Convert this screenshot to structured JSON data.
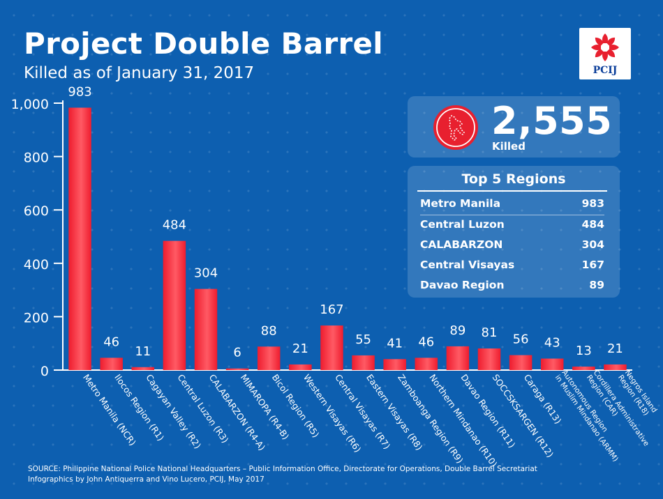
{
  "header": {
    "title": "Project Double Barrel",
    "subtitle": "Killed as of January 31, 2017"
  },
  "logo": {
    "text": "PCIJ",
    "icon": "pcij-sunburst-logo"
  },
  "summary": {
    "total": "2,555",
    "label": "Killed",
    "icon": "fallen-figure-icon"
  },
  "top_regions": {
    "heading": "Top 5 Regions",
    "items": [
      {
        "name": "Metro Manila",
        "value": "983"
      },
      {
        "name": "Central Luzon",
        "value": "484"
      },
      {
        "name": "CALABARZON",
        "value": "304"
      },
      {
        "name": "Central Visayas",
        "value": "167"
      },
      {
        "name": "Davao Region",
        "value": "89"
      }
    ]
  },
  "source": {
    "line1": "SOURCE: Philippine National Police National Headquarters – Public Information Office, Directorate for Operations, Double Barrel Secretariat",
    "line2": "Infographics by John Antiquerra and Vino Lucero, PCIJ, May 2017"
  },
  "colors": {
    "background": "#0d5fb0",
    "bar": "#ee1c2e",
    "bar_highlight": "#ff5a64",
    "text": "#ffffff"
  },
  "chart_data": {
    "type": "bar",
    "title": "Project Double Barrel",
    "subtitle": "Killed as of January 31, 2017",
    "xlabel": "",
    "ylabel": "",
    "ylim": [
      0,
      1000
    ],
    "yticks": [
      0,
      200,
      400,
      600,
      800,
      1000
    ],
    "ytick_labels": [
      "0",
      "200",
      "400",
      "600",
      "800",
      "1,000"
    ],
    "grid": false,
    "categories": [
      [
        "Metro Manila (NCR)"
      ],
      [
        "Ilocos Region (R1)"
      ],
      [
        "Cagayan Valley (R2)"
      ],
      [
        "Central Luzon (R3)"
      ],
      [
        "CALABARZON (R4-A)"
      ],
      [
        "MIMAROPA (R4-B)"
      ],
      [
        "Bicol Region (R5)"
      ],
      [
        "Western Visayas (R6)"
      ],
      [
        "Central Visayas (R7)"
      ],
      [
        "Eastern Visayas (R8)"
      ],
      [
        "Zamboanga Region (R9)"
      ],
      [
        "Northern Mindanao (R10)"
      ],
      [
        "Davao Region (R11)"
      ],
      [
        "SOCCSKSARGEN (R12)"
      ],
      [
        "Caraga (R13)"
      ],
      [
        "Autonomous Region",
        "in Muslim Mindanao (ARMM)"
      ],
      [
        "Cordillera Administrative",
        "Region (CAR)"
      ],
      [
        "Negros Island",
        "Region (R18)"
      ]
    ],
    "values": [
      983,
      46,
      11,
      484,
      304,
      6,
      88,
      21,
      167,
      55,
      41,
      46,
      89,
      81,
      56,
      43,
      13,
      21
    ],
    "data_labels": [
      "983",
      "46",
      "11",
      "484",
      "304",
      "6",
      "88",
      "21",
      "167",
      "55",
      "41",
      "46",
      "89",
      "81",
      "56",
      "43",
      "13",
      "21"
    ]
  }
}
